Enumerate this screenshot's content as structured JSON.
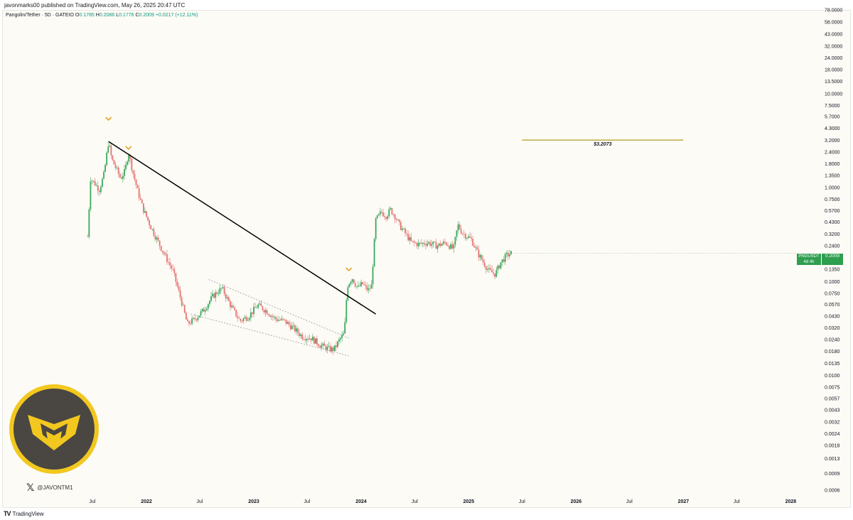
{
  "publish_line": "javonmarks00 published on TradingView.com, May 26, 2025 20:47 UTC",
  "symbol": {
    "name": "Pangolin/Tether · 5D · GATEIO",
    "o_label": "O",
    "o_value": "0.1785",
    "h_label": "H",
    "h_value": "0.2086",
    "l_label": "L",
    "l_value": "0.1776",
    "c_label": "C",
    "c_value": "0.2009",
    "change": "+0.0217 (+12.11%)"
  },
  "price_badge": {
    "ticker": "PNGUSDT",
    "countdown": "4d 4h",
    "value": "0.2009",
    "color": "#2e9e4f"
  },
  "colors": {
    "up": "#26a69a",
    "down": "#e88585",
    "up_candle": "#3aa85d",
    "down_candle": "#e57373",
    "trendline": "#000000",
    "target_line": "#b8a531",
    "marker": "#e3a52a",
    "background": "#fdfbf6"
  },
  "watermark": {
    "icon": "x-logo-icon",
    "handle": "@JAVONTM1"
  },
  "footer": {
    "brand": "TradingView",
    "icon": "tradingview-logo-icon"
  },
  "chart_data": {
    "type": "line",
    "title": "",
    "scale": "log",
    "y_ticks": [
      "78.0000",
      "58.0000",
      "43.0000",
      "32.0000",
      "24.0000",
      "18.0000",
      "13.5000",
      "10.0000",
      "7.5000",
      "5.7000",
      "4.3000",
      "3.2000",
      "2.4000",
      "1.8000",
      "1.3500",
      "1.0000",
      "0.7500",
      "0.5700",
      "0.4300",
      "0.3200",
      "0.2400",
      "0.1350",
      "0.1000",
      "0.0750",
      "0.0570",
      "0.0430",
      "0.0320",
      "0.0240",
      "0.0180",
      "0.0135",
      "0.0100",
      "0.0075",
      "0.0057",
      "0.0043",
      "0.0032",
      "0.0024",
      "0.0018",
      "0.0013",
      "0.0009",
      "0.0006"
    ],
    "x_ticks": [
      {
        "label": "Jul",
        "bold": false
      },
      {
        "label": "2022",
        "bold": true
      },
      {
        "label": "Jul",
        "bold": false
      },
      {
        "label": "2023",
        "bold": true
      },
      {
        "label": "Jul",
        "bold": false
      },
      {
        "label": "2024",
        "bold": true
      },
      {
        "label": "Jul",
        "bold": false
      },
      {
        "label": "2025",
        "bold": true
      },
      {
        "label": "Jul",
        "bold": false
      },
      {
        "label": "2026",
        "bold": true
      },
      {
        "label": "Jul",
        "bold": false
      },
      {
        "label": "2027",
        "bold": true
      },
      {
        "label": "Jul",
        "bold": false
      },
      {
        "label": "2028",
        "bold": true
      }
    ],
    "price_series": [
      [
        "2021-06-15",
        0.3
      ],
      [
        "2021-06-25",
        1.25
      ],
      [
        "2021-07-10",
        1.1
      ],
      [
        "2021-07-25",
        0.95
      ],
      [
        "2021-08-10",
        1.4
      ],
      [
        "2021-08-25",
        3.1
      ],
      [
        "2021-09-05",
        2.0
      ],
      [
        "2021-09-20",
        1.6
      ],
      [
        "2021-10-05",
        1.25
      ],
      [
        "2021-10-20",
        1.5
      ],
      [
        "2021-11-01",
        2.4
      ],
      [
        "2021-11-15",
        1.5
      ],
      [
        "2021-12-01",
        0.95
      ],
      [
        "2021-12-20",
        0.6
      ],
      [
        "2022-01-10",
        0.42
      ],
      [
        "2022-02-01",
        0.3
      ],
      [
        "2022-03-01",
        0.2
      ],
      [
        "2022-04-01",
        0.13
      ],
      [
        "2022-05-01",
        0.06
      ],
      [
        "2022-05-20",
        0.035
      ],
      [
        "2022-06-15",
        0.04
      ],
      [
        "2022-07-15",
        0.05
      ],
      [
        "2022-08-15",
        0.07
      ],
      [
        "2022-09-15",
        0.085
      ],
      [
        "2022-10-15",
        0.055
      ],
      [
        "2022-11-15",
        0.038
      ],
      [
        "2022-12-15",
        0.043
      ],
      [
        "2023-01-15",
        0.056
      ],
      [
        "2023-02-15",
        0.048
      ],
      [
        "2023-03-15",
        0.04
      ],
      [
        "2023-04-15",
        0.038
      ],
      [
        "2023-05-15",
        0.032
      ],
      [
        "2023-06-15",
        0.026
      ],
      [
        "2023-07-15",
        0.025
      ],
      [
        "2023-08-15",
        0.021
      ],
      [
        "2023-09-15",
        0.019
      ],
      [
        "2023-10-01",
        0.019
      ],
      [
        "2023-10-20",
        0.024
      ],
      [
        "2023-11-05",
        0.028
      ],
      [
        "2023-11-15",
        0.09
      ],
      [
        "2023-12-01",
        0.11
      ],
      [
        "2023-12-20",
        0.085
      ],
      [
        "2024-01-05",
        0.095
      ],
      [
        "2024-01-25",
        0.08
      ],
      [
        "2024-02-05",
        0.09
      ],
      [
        "2024-02-20",
        0.45
      ],
      [
        "2024-03-10",
        0.55
      ],
      [
        "2024-03-25",
        0.5
      ],
      [
        "2024-04-10",
        0.58
      ],
      [
        "2024-04-25",
        0.5
      ],
      [
        "2024-05-10",
        0.4
      ],
      [
        "2024-06-01",
        0.32
      ],
      [
        "2024-06-20",
        0.26
      ],
      [
        "2024-07-15",
        0.25
      ],
      [
        "2024-08-15",
        0.26
      ],
      [
        "2024-09-15",
        0.24
      ],
      [
        "2024-10-15",
        0.26
      ],
      [
        "2024-11-10",
        0.22
      ],
      [
        "2024-11-25",
        0.4
      ],
      [
        "2024-12-10",
        0.33
      ],
      [
        "2025-01-10",
        0.28
      ],
      [
        "2025-02-01",
        0.2
      ],
      [
        "2025-02-20",
        0.16
      ],
      [
        "2025-03-10",
        0.13
      ],
      [
        "2025-04-01",
        0.12
      ],
      [
        "2025-04-20",
        0.16
      ],
      [
        "2025-05-10",
        0.19
      ],
      [
        "2025-05-26",
        0.2009
      ]
    ],
    "trendline": [
      [
        "2021-08-25",
        3.1
      ],
      [
        "2024-02-20",
        0.045
      ]
    ],
    "channel_upper": [
      [
        "2022-08-01",
        0.105
      ],
      [
        "2023-11-20",
        0.025
      ]
    ],
    "channel_lower": [
      [
        "2022-06-01",
        0.045
      ],
      [
        "2023-11-25",
        0.016
      ]
    ],
    "target": {
      "value": 3.2073,
      "label": "$3.2073",
      "x_start": "2025-07-01",
      "x_end": "2027-01-01"
    },
    "markers": [
      [
        "2021-08-25"
      ],
      [
        "2021-11-01"
      ],
      [
        "2023-11-20"
      ]
    ]
  }
}
